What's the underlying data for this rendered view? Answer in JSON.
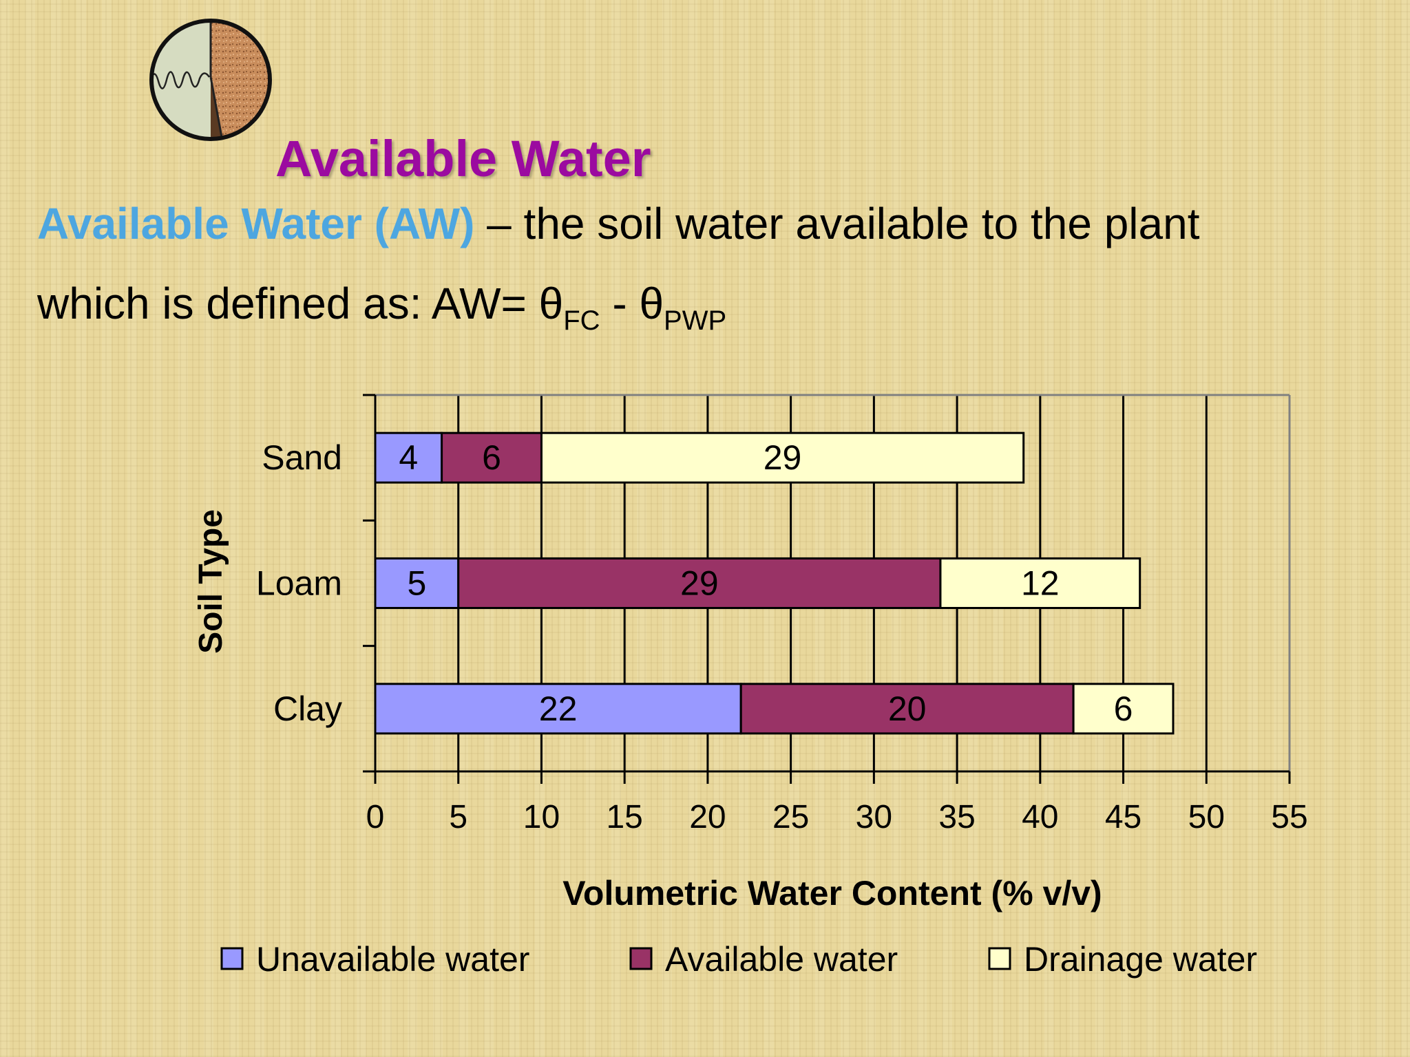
{
  "slide": {
    "title": "Available Water",
    "term": "Available Water (AW)",
    "definition_rest": " – the soil water available to the plant",
    "line2_prefix": "which is defined as:  AW= θ",
    "sub_fc": "FC",
    "minus_theta": " - θ",
    "sub_pwp": "PWP"
  },
  "colors": {
    "title": "#9b0aa0",
    "term": "#4da6e0",
    "unavailable": "#9999ff",
    "available": "#993366",
    "drainage": "#ffffcc"
  },
  "chart_data": {
    "type": "bar",
    "orientation": "horizontal",
    "stacked": true,
    "categories": [
      "Sand",
      "Loam",
      "Clay"
    ],
    "series": [
      {
        "name": "Unavailable water",
        "color": "#9999ff",
        "values": [
          4,
          5,
          22
        ]
      },
      {
        "name": "Available water",
        "color": "#993366",
        "values": [
          6,
          29,
          20
        ]
      },
      {
        "name": "Drainage water",
        "color": "#ffffcc",
        "values": [
          29,
          12,
          6
        ]
      }
    ],
    "xlabel": "Volumetric Water Content (% v/v)",
    "ylabel": "Soil Type",
    "xlim": [
      0,
      55
    ],
    "xticks": [
      0,
      5,
      10,
      15,
      20,
      25,
      30,
      35,
      40,
      45,
      50,
      55
    ],
    "grid": "vertical",
    "legend": "bottom"
  }
}
